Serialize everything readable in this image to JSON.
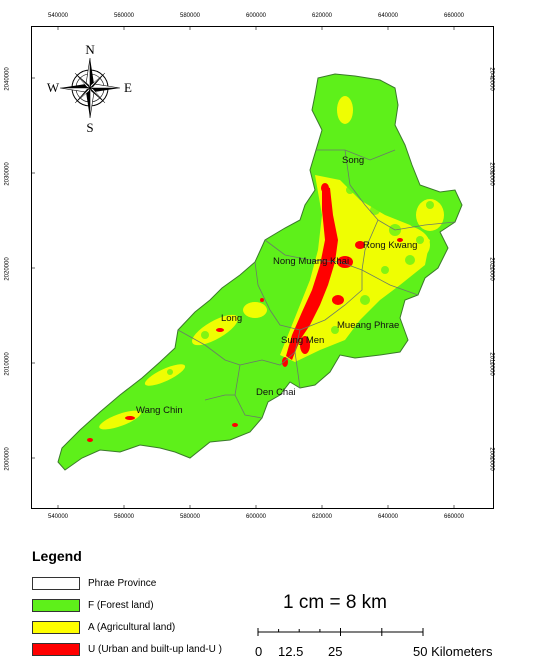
{
  "map": {
    "x_ticks": [
      "540000",
      "560000",
      "580000",
      "600000",
      "620000",
      "640000",
      "660000"
    ],
    "y_ticks": [
      "2040000",
      "2030000",
      "2020000",
      "2010000",
      "2000000"
    ],
    "districts": [
      "Song",
      "Rong Kwang",
      "Nong Muang Khai",
      "Long",
      "Sung Men",
      "Mueang Phrae",
      "Den Chai",
      "Wang Chin"
    ],
    "compass": {
      "n": "N",
      "s": "S",
      "e": "E",
      "w": "W"
    }
  },
  "legend": {
    "title": "Legend",
    "items": [
      {
        "label": "Phrae Province",
        "color": "#ffffff"
      },
      {
        "label": "F (Forest land)",
        "color": "#5ef01a"
      },
      {
        "label": "A (Agricultural land)",
        "color": "#ffff00"
      },
      {
        "label": "U (Urban and built-up land-U )",
        "color": "#ff0000"
      }
    ]
  },
  "scale": {
    "text": "1 cm = 8 km",
    "labels": [
      "0",
      "12.5",
      "25",
      "50 Kilometers"
    ]
  }
}
